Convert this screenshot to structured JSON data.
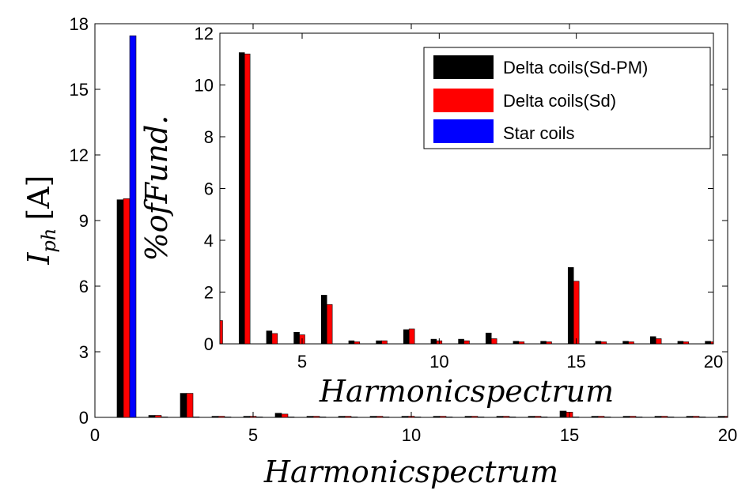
{
  "chart_data": [
    {
      "id": "main",
      "type": "bar",
      "xlabel": "Harmonicspectrum",
      "ylabel": "I_ph [A]",
      "ylabel_main": "I",
      "ylabel_sub": "ph",
      "ylabel_unit": "[A]",
      "xlim": [
        0,
        20
      ],
      "ylim": [
        0,
        18
      ],
      "xticks": [
        0,
        5,
        10,
        15,
        20
      ],
      "yticks": [
        0,
        3,
        6,
        9,
        12,
        15,
        18
      ],
      "grid": false,
      "categories": [
        1,
        2,
        3,
        4,
        5,
        6,
        7,
        8,
        9,
        10,
        11,
        12,
        13,
        14,
        15,
        16,
        17,
        18,
        19,
        20
      ],
      "series": [
        {
          "name": "Delta coils(Sd-PM)",
          "color": "#000000",
          "values": [
            9.95,
            0.09,
            1.1,
            0.05,
            0.05,
            0.19,
            0.05,
            0.05,
            0.05,
            0.05,
            0.05,
            0.05,
            0.05,
            0.05,
            0.29,
            0.05,
            0.05,
            0.05,
            0.05,
            0.05
          ]
        },
        {
          "name": "Delta coils(Sd)",
          "color": "#ff0000",
          "values": [
            10.0,
            0.09,
            1.1,
            0.05,
            0.05,
            0.15,
            0.05,
            0.05,
            0.05,
            0.05,
            0.05,
            0.05,
            0.05,
            0.05,
            0.24,
            0.05,
            0.05,
            0.05,
            0.05,
            0.05
          ]
        },
        {
          "name": "Star coils",
          "color": "#0000ff",
          "values": [
            17.45,
            0.02,
            0.02,
            0.02,
            0.02,
            0.02,
            0.02,
            0.02,
            0.02,
            0.02,
            0.02,
            0.02,
            0.02,
            0.02,
            0.02,
            0.02,
            0.02,
            0.02,
            0.02,
            0.02
          ]
        }
      ]
    },
    {
      "id": "inset",
      "type": "bar",
      "xlabel": "Harmonicspectrum",
      "ylabel": "%ofFund.",
      "xlim": [
        2,
        20
      ],
      "ylim": [
        0,
        12
      ],
      "xticks": [
        5,
        10,
        15,
        20
      ],
      "yticks": [
        0,
        2,
        4,
        6,
        8,
        10,
        12
      ],
      "grid": false,
      "legend": "top-right",
      "categories": [
        2,
        3,
        4,
        5,
        6,
        7,
        8,
        9,
        10,
        11,
        12,
        13,
        14,
        15,
        16,
        17,
        18,
        19,
        20
      ],
      "series": [
        {
          "name": "Delta coils(Sd-PM)",
          "color": "#000000",
          "values": [
            0.85,
            11.25,
            0.5,
            0.45,
            1.88,
            0.12,
            0.12,
            0.55,
            0.18,
            0.18,
            0.42,
            0.1,
            0.1,
            2.95,
            0.1,
            0.1,
            0.28,
            0.1,
            0.1
          ]
        },
        {
          "name": "Delta coils(Sd)",
          "color": "#ff0000",
          "values": [
            0.9,
            11.2,
            0.4,
            0.35,
            1.52,
            0.08,
            0.12,
            0.58,
            0.12,
            0.12,
            0.2,
            0.08,
            0.08,
            2.42,
            0.08,
            0.08,
            0.2,
            0.08,
            0.08
          ]
        },
        {
          "name": "Star coils",
          "color": "#0000ff",
          "values": [
            0,
            0,
            0,
            0,
            0,
            0,
            0,
            0,
            0,
            0,
            0,
            0,
            0,
            0,
            0,
            0,
            0,
            0,
            0
          ]
        }
      ]
    }
  ]
}
